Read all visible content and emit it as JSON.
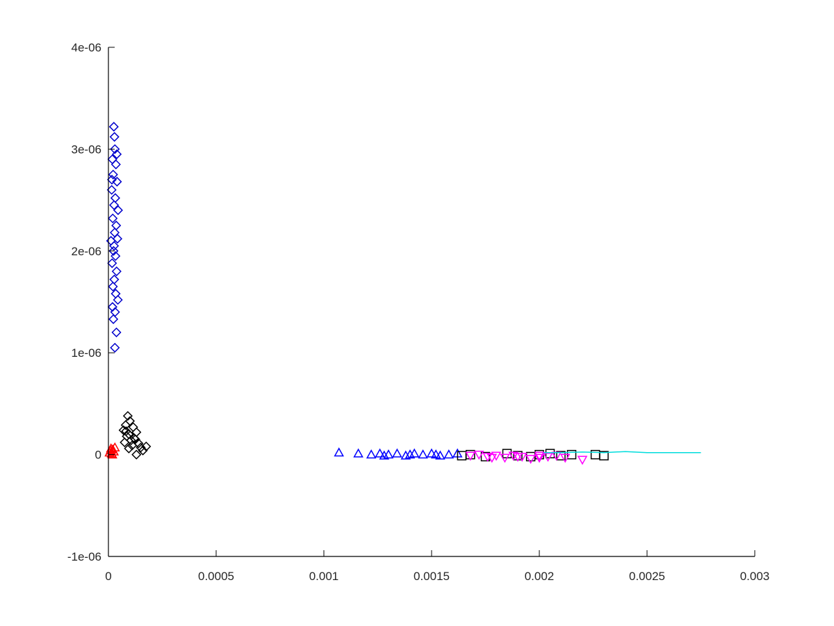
{
  "chart_data": {
    "type": "scatter",
    "title": "",
    "xlabel": "",
    "ylabel": "",
    "xlim": [
      0,
      0.003
    ],
    "ylim": [
      -1e-06,
      4e-06
    ],
    "grid": false,
    "x_ticks": [
      {
        "value": 0,
        "label": "0"
      },
      {
        "value": 0.0005,
        "label": "0.0005"
      },
      {
        "value": 0.001,
        "label": "0.001"
      },
      {
        "value": 0.0015,
        "label": "0.0015"
      },
      {
        "value": 0.002,
        "label": "0.002"
      },
      {
        "value": 0.0025,
        "label": "0.0025"
      },
      {
        "value": 0.003,
        "label": "0.003"
      }
    ],
    "y_ticks": [
      {
        "value": -1e-06,
        "label": "-1e-06"
      },
      {
        "value": 0,
        "label": "0"
      },
      {
        "value": 1e-06,
        "label": "1e-06"
      },
      {
        "value": 2e-06,
        "label": "2e-06"
      },
      {
        "value": 3e-06,
        "label": "3e-06"
      },
      {
        "value": 4e-06,
        "label": "4e-06"
      }
    ],
    "series": [
      {
        "marker": "diamond",
        "color": "#0000cc",
        "points": [
          [
            2.5e-05,
            3.22e-06
          ],
          [
            2.8e-05,
            3.12e-06
          ],
          [
            3e-05,
            3e-06
          ],
          [
            1.8e-05,
            2.9e-06
          ],
          [
            3.5e-05,
            2.85e-06
          ],
          [
            2.2e-05,
            2.75e-06
          ],
          [
            4e-05,
            2.68e-06
          ],
          [
            1.5e-05,
            2.6e-06
          ],
          [
            3.2e-05,
            2.52e-06
          ],
          [
            2.6e-05,
            2.45e-06
          ],
          [
            4.5e-05,
            2.4e-06
          ],
          [
            2e-05,
            2.32e-06
          ],
          [
            3.6e-05,
            2.25e-06
          ],
          [
            2.9e-05,
            2.18e-06
          ],
          [
            1.2e-05,
            2.1e-06
          ],
          [
            4.2e-05,
            2.12e-06
          ],
          [
            2.4e-05,
            2e-06
          ],
          [
            3.3e-05,
            1.95e-06
          ],
          [
            1.7e-05,
            1.88e-06
          ],
          [
            3.8e-05,
            1.8e-06
          ],
          [
            2.7e-05,
            1.72e-06
          ],
          [
            2.1e-05,
            1.65e-06
          ],
          [
            3.4e-05,
            1.58e-06
          ],
          [
            4.4e-05,
            1.52e-06
          ],
          [
            1.9e-05,
            1.45e-06
          ],
          [
            3.1e-05,
            1.4e-06
          ],
          [
            2.3e-05,
            1.33e-06
          ],
          [
            3.7e-05,
            1.2e-06
          ],
          [
            3e-05,
            1.05e-06
          ],
          [
            1.6e-05,
            2.7e-06
          ],
          [
            3.9e-05,
            2.95e-06
          ],
          [
            2.6e-05,
            2.05e-06
          ]
        ]
      },
      {
        "marker": "diamond",
        "color": "#000000",
        "points": [
          [
            9e-05,
            3.8e-07
          ],
          [
            0.0001,
            3.3e-07
          ],
          [
            8e-05,
            2.9e-07
          ],
          [
            0.000115,
            2.7e-07
          ],
          [
            7e-05,
            2.4e-07
          ],
          [
            0.00013,
            2.2e-07
          ],
          [
            9.5e-05,
            2e-07
          ],
          [
            8.5e-05,
            1.8e-07
          ],
          [
            0.00012,
            1.6e-07
          ],
          [
            0.000105,
            1.4e-07
          ],
          [
            7.5e-05,
            1.2e-07
          ],
          [
            0.00014,
            1.1e-07
          ],
          [
            0.00011,
            9e-08
          ],
          [
            0.00015,
            7e-08
          ],
          [
            0.000175,
            8e-08
          ],
          [
            0.00016,
            4e-08
          ],
          [
            0.00013,
            0.0
          ],
          [
            9.5e-05,
            6e-08
          ],
          [
            0.000125,
            1.5e-07
          ],
          [
            8.2e-05,
            2.3e-07
          ]
        ]
      },
      {
        "marker": "triangle-up",
        "color": "#ff0000",
        "points": [
          [
            5e-06,
            2e-08
          ],
          [
            1e-05,
            4e-08
          ],
          [
            1.5e-05,
            1e-08
          ],
          [
            2e-05,
            5e-08
          ],
          [
            2.5e-05,
            3e-08
          ],
          [
            3e-05,
            7e-08
          ],
          [
            1.2e-05,
            6e-08
          ],
          [
            1.8e-05,
            0.0
          ]
        ]
      },
      {
        "marker": "triangle-up",
        "color": "#0000ff",
        "points": [
          [
            0.00107,
            2e-08
          ],
          [
            0.00116,
            1e-08
          ],
          [
            0.00122,
            0.0
          ],
          [
            0.00126,
            1e-08
          ],
          [
            0.0013,
            0.0
          ],
          [
            0.00134,
            1e-08
          ],
          [
            0.00138,
            -1e-08
          ],
          [
            0.00142,
            1e-08
          ],
          [
            0.00146,
            0.0
          ],
          [
            0.0015,
            1e-08
          ],
          [
            0.00154,
            -1e-08
          ],
          [
            0.00158,
            0.0
          ],
          [
            0.00162,
            1e-08
          ],
          [
            0.00128,
            -1e-08
          ],
          [
            0.0014,
            0.0
          ],
          [
            0.00152,
            0.0
          ]
        ]
      },
      {
        "marker": "square",
        "color": "#000000",
        "points": [
          [
            0.00164,
            -1e-08
          ],
          [
            0.00168,
            0.0
          ],
          [
            0.00175,
            -2e-08
          ],
          [
            0.00185,
            1e-08
          ],
          [
            0.0019,
            -1e-08
          ],
          [
            0.002,
            0.0
          ],
          [
            0.00205,
            1e-08
          ],
          [
            0.0021,
            -1e-08
          ],
          [
            0.00215,
            0.0
          ],
          [
            0.00226,
            0.0
          ],
          [
            0.0023,
            -1e-08
          ],
          [
            0.00196,
            -2e-08
          ]
        ]
      },
      {
        "marker": "triangle-down",
        "color": "#ff00ff",
        "points": [
          [
            0.00168,
            -1e-08
          ],
          [
            0.00172,
            0.0
          ],
          [
            0.00176,
            -2e-08
          ],
          [
            0.0018,
            -1e-08
          ],
          [
            0.00184,
            -3e-08
          ],
          [
            0.00188,
            -1e-08
          ],
          [
            0.00192,
            -2e-08
          ],
          [
            0.00196,
            -4e-08
          ],
          [
            0.002,
            -1e-08
          ],
          [
            0.00204,
            -2e-08
          ],
          [
            0.00208,
            -1e-08
          ],
          [
            0.00212,
            -3e-08
          ],
          [
            0.0022,
            -5e-08
          ],
          [
            0.00178,
            -3e-08
          ],
          [
            0.0019,
            -2e-08
          ],
          [
            0.002,
            -3e-08
          ]
        ]
      },
      {
        "marker": "line",
        "color": "#00dddd",
        "points": [
          [
            0.00202,
            2e-08
          ],
          [
            0.0021,
            2e-08
          ],
          [
            0.0022,
            2.5e-08
          ],
          [
            0.0023,
            2e-08
          ],
          [
            0.0024,
            3e-08
          ],
          [
            0.0025,
            2e-08
          ],
          [
            0.0026,
            2e-08
          ],
          [
            0.00275,
            2e-08
          ]
        ]
      }
    ]
  }
}
